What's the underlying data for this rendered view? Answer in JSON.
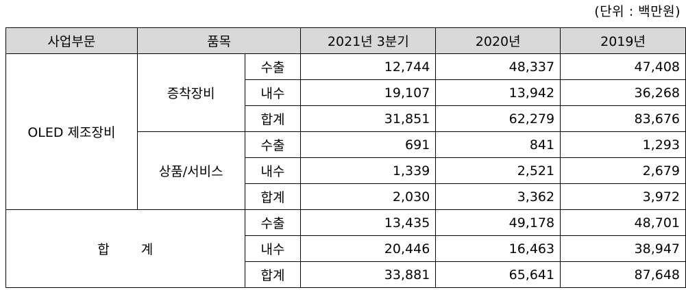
{
  "unit_note": "(단위 : 백만원)",
  "headers": [
    "사업부문",
    "품목",
    "2021년 3분기",
    "2020년",
    "2019년"
  ],
  "sections": [
    {
      "division": "OLED 제조장비",
      "groups": [
        {
          "item": "증착장비",
          "rows": [
            {
              "type": "수출",
              "values": [
                "12,744",
                "48,337",
                "47,408"
              ]
            },
            {
              "type": "내수",
              "values": [
                "19,107",
                "13,942",
                "36,268"
              ]
            },
            {
              "type": "합계",
              "values": [
                "31,851",
                "62,279",
                "83,676"
              ]
            }
          ]
        },
        {
          "item": "상품/서비스",
          "rows": [
            {
              "type": "수출",
              "values": [
                "691",
                "841",
                "1,293"
              ]
            },
            {
              "type": "내수",
              "values": [
                "1,339",
                "2,521",
                "2,679"
              ]
            },
            {
              "type": "합계",
              "values": [
                "2,030",
                "3,362",
                "3,972"
              ]
            }
          ]
        }
      ]
    },
    {
      "division": "합 계",
      "rows": [
        {
          "type": "수출",
          "values": [
            "13,435",
            "49,178",
            "48,701"
          ]
        },
        {
          "type": "내수",
          "values": [
            "20,446",
            "16,463",
            "38,947"
          ]
        },
        {
          "type": "합계",
          "values": [
            "33,881",
            "65,641",
            "87,648"
          ]
        }
      ]
    }
  ]
}
